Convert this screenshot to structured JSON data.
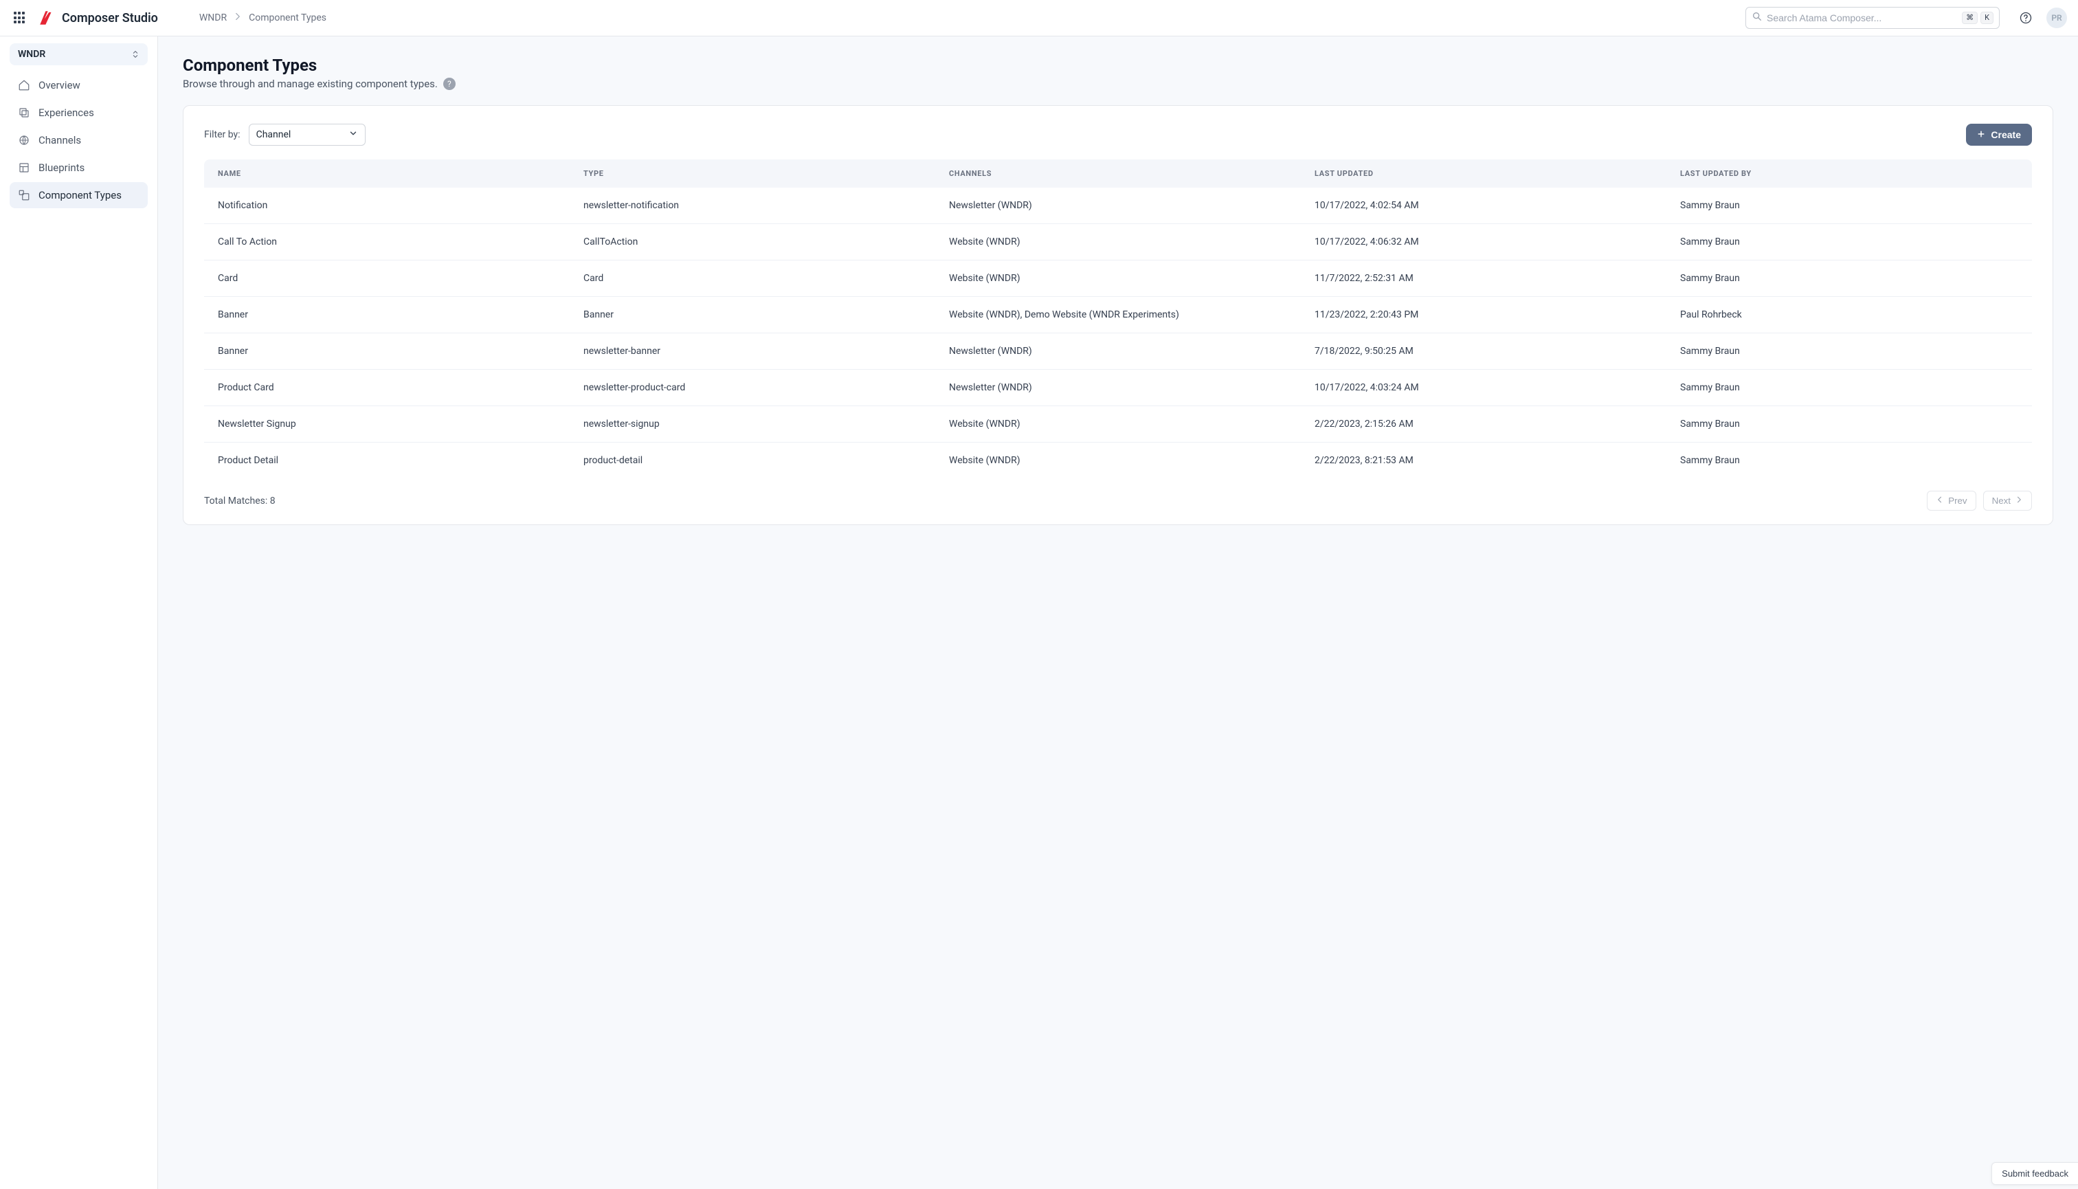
{
  "header": {
    "brand_name": "Composer Studio",
    "breadcrumb": {
      "root": "WNDR",
      "current": "Component Types"
    },
    "search_placeholder": "Search Atama Composer...",
    "shortcut_keys": [
      "⌘",
      "K"
    ],
    "avatar_initials": "PR"
  },
  "sidebar": {
    "workspace_label": "WNDR",
    "items": [
      {
        "id": "overview",
        "label": "Overview"
      },
      {
        "id": "experiences",
        "label": "Experiences"
      },
      {
        "id": "channels",
        "label": "Channels"
      },
      {
        "id": "blueprints",
        "label": "Blueprints"
      },
      {
        "id": "component-types",
        "label": "Component Types"
      }
    ],
    "active_id": "component-types"
  },
  "page": {
    "title": "Component Types",
    "subtitle": "Browse through and manage existing component types."
  },
  "toolbar": {
    "filter_label": "Filter by:",
    "filter_value": "Channel",
    "create_label": "Create"
  },
  "table": {
    "columns": [
      "NAME",
      "TYPE",
      "CHANNELS",
      "LAST UPDATED",
      "LAST UPDATED BY"
    ],
    "rows": [
      [
        "Notification",
        "newsletter-notification",
        "Newsletter (WNDR)",
        "10/17/2022, 4:02:54 AM",
        "Sammy Braun"
      ],
      [
        "Call To Action",
        "CallToAction",
        "Website (WNDR)",
        "10/17/2022, 4:06:32 AM",
        "Sammy Braun"
      ],
      [
        "Card",
        "Card",
        "Website (WNDR)",
        "11/7/2022, 2:52:31 AM",
        "Sammy Braun"
      ],
      [
        "Banner",
        "Banner",
        "Website (WNDR), Demo Website (WNDR Experiments)",
        "11/23/2022, 2:20:43 PM",
        "Paul Rohrbeck"
      ],
      [
        "Banner",
        "newsletter-banner",
        "Newsletter (WNDR)",
        "7/18/2022, 9:50:25 AM",
        "Sammy Braun"
      ],
      [
        "Product Card",
        "newsletter-product-card",
        "Newsletter (WNDR)",
        "10/17/2022, 4:03:24 AM",
        "Sammy Braun"
      ],
      [
        "Newsletter Signup",
        "newsletter-signup",
        "Website (WNDR)",
        "2/22/2023, 2:15:26 AM",
        "Sammy Braun"
      ],
      [
        "Product Detail",
        "product-detail",
        "Website (WNDR)",
        "2/22/2023, 8:21:53 AM",
        "Sammy Braun"
      ]
    ]
  },
  "footer": {
    "total_label": "Total Matches: 8",
    "prev_label": "Prev",
    "next_label": "Next"
  },
  "feedback_label": "Submit feedback",
  "colors": {
    "background_main": "#f7f9fc",
    "border": "#e5e7eb",
    "text_primary": "#1f2a37",
    "text_secondary": "#4b5563",
    "text_muted": "#6b7280",
    "accent_red": "#e52534",
    "btn_bg": "#5a6b87",
    "sidebar_hover": "#eef2f9",
    "thead_bg": "#f4f6fa",
    "avatar_bg": "#e6ecf3"
  }
}
